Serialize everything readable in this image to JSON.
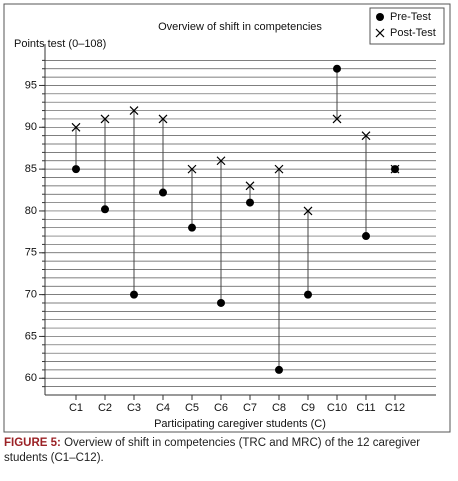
{
  "chart_data": {
    "type": "dumbbell",
    "title": "Overview of shift in competencies",
    "y_label": "Points test (0–108)",
    "x_label": "Participating caregiver students (C)",
    "categories": [
      "C1",
      "C2",
      "C3",
      "C4",
      "C5",
      "C6",
      "C7",
      "C8",
      "C9",
      "C10",
      "C11",
      "C12"
    ],
    "series": [
      {
        "name": "Pre-Test",
        "color": "#000000",
        "marker": "circle",
        "values": [
          85,
          80.2,
          70,
          82.2,
          78,
          69,
          81,
          61,
          70,
          97,
          77,
          85
        ]
      },
      {
        "name": "Post-Test",
        "color": "#000000",
        "marker": "x",
        "values": [
          90,
          91,
          92,
          91,
          85,
          86,
          83,
          85,
          80,
          91,
          89,
          85
        ]
      }
    ],
    "ylim": [
      58,
      99
    ],
    "yticks": [
      60,
      65,
      70,
      75,
      80,
      85,
      90,
      95
    ],
    "yminorticks": [
      59,
      60,
      61,
      62,
      63,
      64,
      65,
      66,
      67,
      68,
      69,
      70,
      71,
      72,
      73,
      74,
      75,
      76,
      77,
      78,
      79,
      80,
      81,
      82,
      83,
      84,
      85,
      86,
      87,
      88,
      89,
      90,
      91,
      92,
      93,
      94,
      95,
      96,
      97,
      98
    ],
    "grid": true,
    "legend": "top-right"
  },
  "caption": {
    "label": "FIGURE 5:",
    "text": "Overview of shift in competencies (TRC and MRC) of the 12 caregiver students (C1–C12)."
  }
}
